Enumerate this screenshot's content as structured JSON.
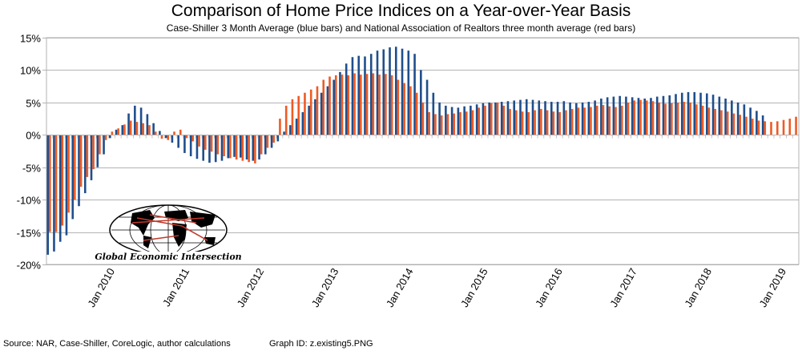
{
  "chart_data": {
    "type": "bar",
    "title": "Comparison of Home Price Indices on a Year-over-Year Basis",
    "subtitle": "Case-Shiller 3 Month Average (blue bars) and National Association of Realtors three month average (red bars)",
    "ylabel": "",
    "xlabel": "",
    "ylim": [
      -20,
      15
    ],
    "yticks": [
      15,
      10,
      5,
      0,
      -5,
      -10,
      -15,
      -20
    ],
    "ytick_labels": [
      "15%",
      "10%",
      "5%",
      "0%",
      "-5%",
      "-10%",
      "-15%",
      "-20%"
    ],
    "grid": true,
    "x_start": "2009-03",
    "x_end": "2019-04",
    "xtick_labels": [
      {
        "label": "Jan 2010",
        "index": 10
      },
      {
        "label": "Jan 2011",
        "index": 22
      },
      {
        "label": "Jan 2012",
        "index": 34
      },
      {
        "label": "Jan 2013",
        "index": 46
      },
      {
        "label": "Jan 2014",
        "index": 58
      },
      {
        "label": "Jan 2015",
        "index": 70
      },
      {
        "label": "Jan 2016",
        "index": 82
      },
      {
        "label": "Jan 2017",
        "index": 94
      },
      {
        "label": "Jan 2018",
        "index": 106
      },
      {
        "label": "Jan 2019",
        "index": 118
      }
    ],
    "series": [
      {
        "name": "Case-Shiller 3 Month Average",
        "color": "#1f4e8c",
        "values": [
          -18.5,
          -18.0,
          -16.5,
          -15.5,
          -13.0,
          -11.0,
          -9.0,
          -7.0,
          -5.0,
          -3.0,
          -0.5,
          0.8,
          1.5,
          3.3,
          4.5,
          4.2,
          3.2,
          1.8,
          0.6,
          -0.5,
          -1.2,
          -2.0,
          -2.8,
          -3.3,
          -3.7,
          -4.0,
          -4.3,
          -4.2,
          -4.0,
          -3.6,
          -3.4,
          -3.5,
          -3.8,
          -4.0,
          -3.8,
          -3.0,
          -2.0,
          -1.0,
          0.5,
          1.5,
          2.5,
          3.5,
          4.5,
          5.5,
          6.5,
          7.5,
          8.5,
          9.7,
          11.0,
          12.0,
          12.2,
          12.1,
          12.5,
          13.0,
          13.2,
          13.5,
          13.6,
          13.3,
          13.0,
          12.5,
          10.0,
          8.5,
          6.5,
          5.0,
          4.5,
          4.3,
          4.2,
          4.4,
          4.5,
          4.7,
          4.9,
          5.0,
          5.0,
          5.1,
          5.2,
          5.3,
          5.4,
          5.5,
          5.4,
          5.3,
          5.2,
          5.1,
          5.1,
          5.2,
          5.0,
          4.9,
          5.0,
          5.1,
          5.3,
          5.6,
          5.8,
          5.9,
          6.0,
          5.9,
          5.8,
          5.7,
          5.6,
          5.7,
          5.9,
          6.0,
          6.1,
          6.3,
          6.5,
          6.6,
          6.6,
          6.5,
          6.4,
          6.2,
          5.9,
          5.6,
          5.3,
          5.0,
          4.7,
          4.2,
          3.7,
          3.0,
          null,
          null,
          null,
          null,
          null
        ]
      },
      {
        "name": "National Association of Realtors three month average",
        "color": "#ee5a24",
        "values": [
          -15.0,
          -15.0,
          -14.0,
          -12.0,
          -10.0,
          -8.0,
          -6.5,
          -5.3,
          -3.0,
          -0.8,
          0.5,
          1.0,
          1.6,
          2.2,
          2.0,
          1.8,
          1.5,
          0.5,
          -0.6,
          -0.8,
          0.5,
          0.8,
          -0.5,
          -1.0,
          -1.8,
          -2.3,
          -2.6,
          -3.0,
          -3.3,
          -3.6,
          -3.8,
          -4.0,
          -4.2,
          -4.4,
          -3.0,
          -2.0,
          -1.2,
          2.5,
          4.5,
          5.5,
          6.0,
          6.5,
          7.0,
          7.5,
          8.5,
          9.0,
          9.2,
          9.3,
          9.2,
          9.5,
          9.3,
          9.4,
          9.5,
          9.3,
          9.4,
          9.2,
          8.5,
          8.0,
          7.5,
          6.5,
          5.0,
          3.5,
          3.2,
          3.0,
          3.2,
          3.3,
          3.5,
          3.6,
          3.8,
          4.2,
          4.5,
          4.9,
          5.0,
          4.5,
          4.0,
          3.8,
          3.6,
          3.5,
          3.8,
          4.0,
          3.8,
          3.6,
          3.5,
          3.8,
          4.0,
          4.2,
          4.2,
          4.3,
          4.5,
          4.6,
          4.4,
          4.3,
          4.5,
          5.0,
          5.3,
          5.4,
          5.3,
          5.2,
          5.0,
          4.8,
          4.9,
          5.0,
          5.1,
          5.0,
          4.7,
          4.5,
          4.2,
          4.0,
          3.8,
          3.6,
          3.3,
          3.1,
          2.8,
          2.5,
          2.2,
          2.1,
          2.0,
          2.1,
          2.3,
          2.5,
          2.8
        ]
      }
    ]
  },
  "logo": {
    "text": "Global Economic Intersection",
    "outline_color": "#000000",
    "route_color": "#c0392b"
  },
  "footer": {
    "source": "Source: NAR, Case-Shiller, CoreLogic, author calculations",
    "graph_id": "Graph ID: z.existing5.PNG"
  }
}
